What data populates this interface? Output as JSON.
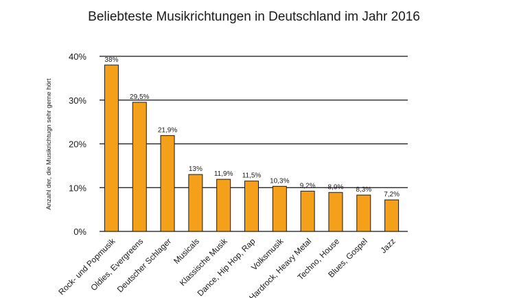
{
  "chart_data": {
    "type": "bar",
    "title": "Beliebteste Musikrichtungen in Deutschland im Jahr 2016",
    "ylabel": "Anzahl der, die Musikrichtugn sehr gerne hört",
    "xlabel": "",
    "ylim": [
      0,
      40
    ],
    "grid": true,
    "bar_color": "#f5a01a",
    "categories": [
      "Rock- und Popmusik",
      "Oldies, Evergreens",
      "Deutscher Schlager",
      "Musicals",
      "Klassische Musik",
      "Dance, Hip Hop, Rap",
      "Volksmusik",
      "Hardrock, Heavy Metal",
      "Techno, House",
      "Blues, Gospel",
      "Jazz"
    ],
    "values": [
      38,
      29.5,
      21.9,
      13,
      11.9,
      11.5,
      10.3,
      9.2,
      8.9,
      8.3,
      7.2
    ],
    "data_labels": [
      "38%",
      "29,5%",
      "21,9%",
      "13%",
      "11,9%",
      "11,5%",
      "10,3%",
      "9,2%",
      "8,9%",
      "8,3%",
      "7,2%"
    ],
    "y_ticks": [
      0,
      10,
      20,
      30,
      40
    ],
    "y_tick_labels": [
      "0%",
      "10%",
      "20%",
      "30%",
      "40%"
    ]
  }
}
